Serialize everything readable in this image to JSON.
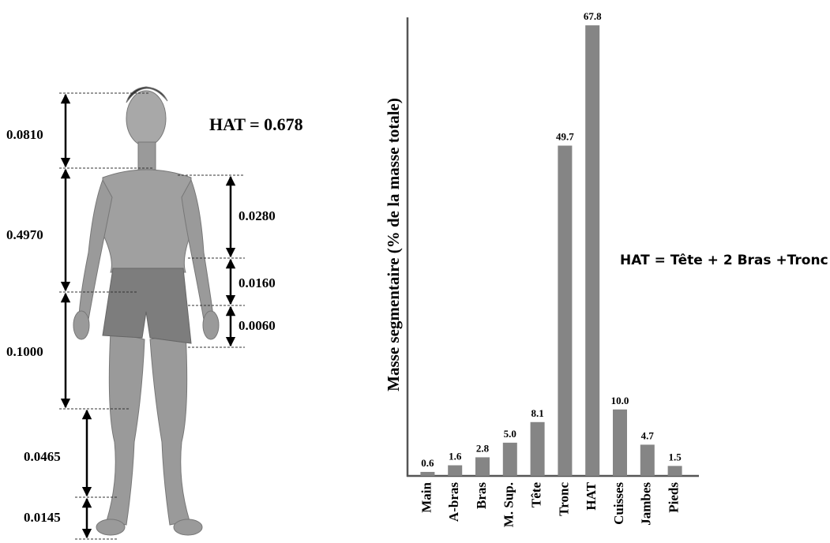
{
  "diagram": {
    "left_labels": [
      "0.0810",
      "0.4970",
      "0.1000",
      "0.0465",
      "0.0145"
    ],
    "right_labels": [
      "0.0280",
      "0.0160",
      "0.0060"
    ],
    "hat_label": "HAT = 0.678"
  },
  "chart_data": {
    "type": "bar",
    "y_label": "Masse segmentaire (% de la masse totale)",
    "annotation": "HAT = Tête + 2 Bras +Tronc",
    "categories": [
      "Main",
      "A-bras",
      "Bras",
      "M. Sup.",
      "Tête",
      "Tronc",
      "HAT",
      "Cuisses",
      "Jambes",
      "Pieds"
    ],
    "values": [
      0.6,
      1.6,
      2.8,
      5.0,
      8.1,
      49.7,
      67.8,
      10.0,
      4.7,
      1.5
    ],
    "value_labels": [
      "0.6",
      "1.6",
      "2.8",
      "5.0",
      "8.1",
      "49.7",
      "67.8",
      "10.0",
      "4.7",
      "1.5"
    ],
    "color": "#858585",
    "ylim": [
      0,
      69
    ]
  }
}
